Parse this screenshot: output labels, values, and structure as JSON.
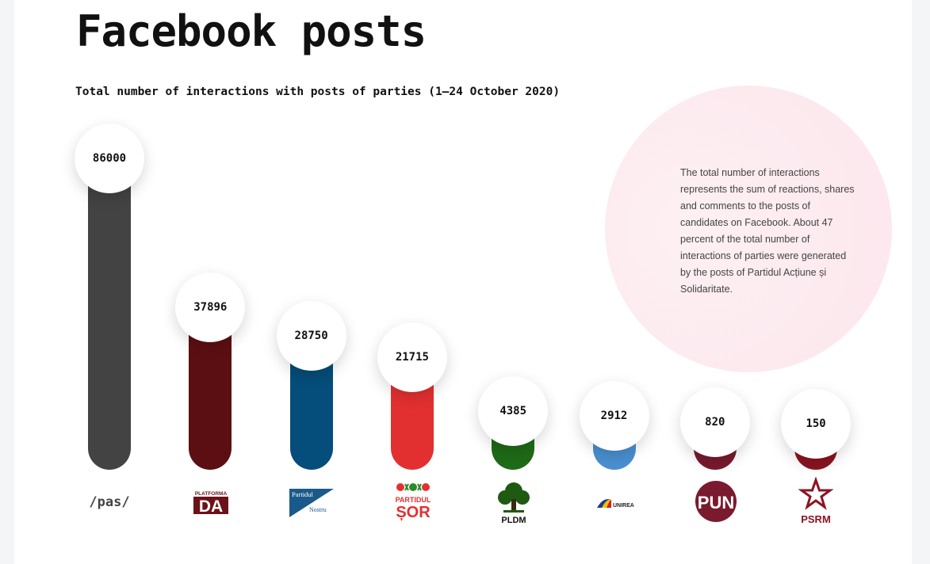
{
  "title": "Facebook posts",
  "chart_data": {
    "type": "bar",
    "title": "Total number of interactions with posts of parties (1–24 October 2020)",
    "categories": [
      "/pas/",
      "PLATFORMA DA",
      "Partidul Nostru",
      "PARTIDUL ȘOR",
      "PLDM",
      "UNIREA",
      "PUN",
      "PSRM"
    ],
    "values": [
      86000,
      37896,
      28750,
      21715,
      4385,
      2912,
      820,
      150
    ],
    "value_labels": [
      "86000",
      "37896",
      "28750",
      "21715",
      "4385",
      "2912",
      "820",
      "150"
    ],
    "colors": [
      "#434343",
      "#5c0f12",
      "#054d7a",
      "#e23030",
      "#1f6a17",
      "#4a8fd0",
      "#7a1a2f",
      "#8c1421"
    ],
    "ylim": [
      0,
      86000
    ],
    "grid": false,
    "legend": "none"
  },
  "note": "The total number of interactions represents the sum of reactions, shares and comments to the posts of candidates on Facebook. About 47 percent of the total number of interactions of parties were generated by the posts of  Partidul Acțiune și Solidaritate.",
  "logos": {
    "pas": "/pas/",
    "da_top": "PLATFORMA",
    "da_main": "DA",
    "nostru_1": "Partidul",
    "nostru_2": "Nostru",
    "sor_1": "PARTIDUL",
    "sor_2": "ȘOR",
    "pldm": "PLDM",
    "unirea": "UNIREA",
    "pun": "PUN",
    "psrm": "PSRM"
  },
  "icons": [
    "tree-icon",
    "star-icon",
    "flag-icon",
    "flower-icon"
  ]
}
